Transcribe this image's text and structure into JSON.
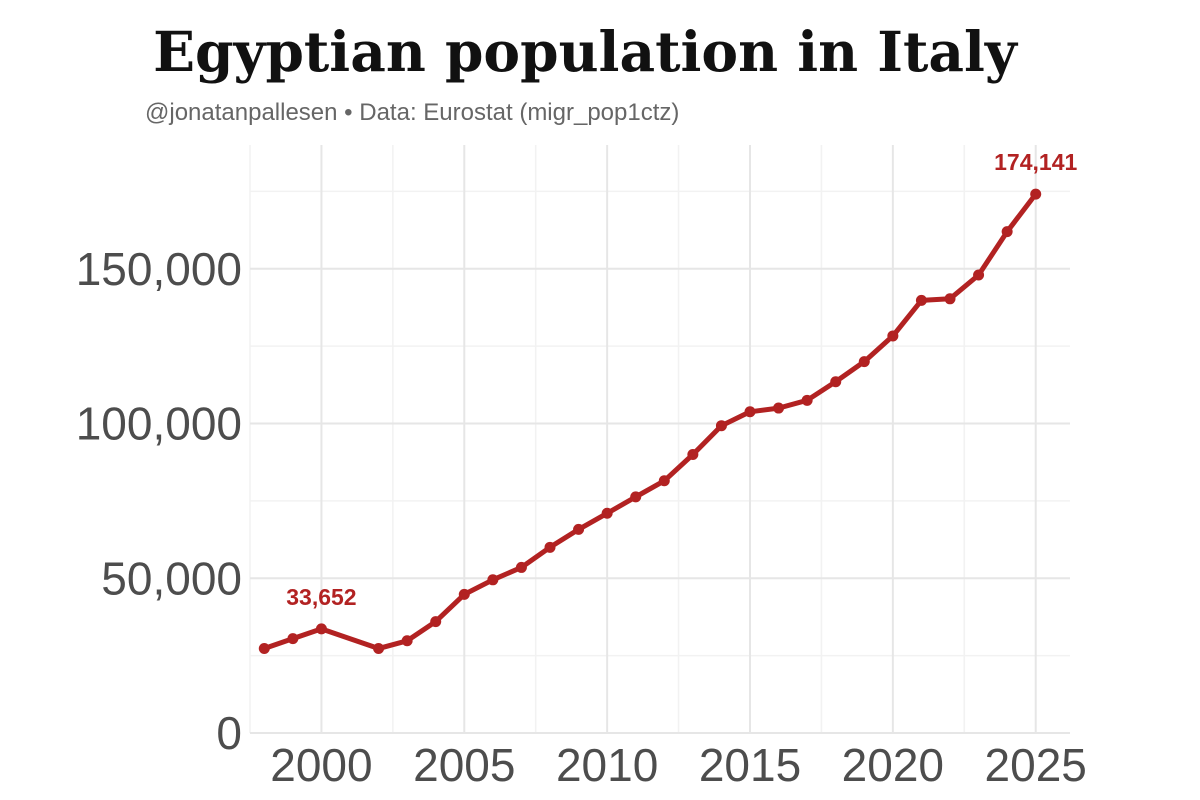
{
  "header": {
    "title": "Egyptian population in Italy",
    "subtitle": "@jonatanpallesen • Data: Eurostat (migr_pop1ctz)"
  },
  "colors": {
    "series": "#b22222",
    "grid_major": "#e6e6e6",
    "grid_minor": "#f2f2f2",
    "tick_text": "#4d4d4d"
  },
  "chart_data": {
    "type": "line",
    "title": "Egyptian population in Italy",
    "subtitle": "@jonatanpallesen • Data: Eurostat (migr_pop1ctz)",
    "xlabel": "",
    "ylabel": "",
    "xlim": [
      1997.5,
      2026.2
    ],
    "ylim": [
      0,
      190000
    ],
    "x_ticks": [
      2000,
      2005,
      2010,
      2015,
      2020,
      2025
    ],
    "x_tick_labels": [
      "2000",
      "2005",
      "2010",
      "2015",
      "2020",
      "2025"
    ],
    "y_ticks": [
      0,
      50000,
      100000,
      150000
    ],
    "y_tick_labels": [
      "0",
      "50,000",
      "100,000",
      "150,000"
    ],
    "grid": true,
    "legend": "none",
    "series": [
      {
        "name": "Egyptian population",
        "x": [
          1998,
          1999,
          2000,
          2002,
          2003,
          2004,
          2005,
          2006,
          2007,
          2008,
          2009,
          2010,
          2011,
          2012,
          2013,
          2014,
          2015,
          2016,
          2017,
          2018,
          2019,
          2020,
          2021,
          2022,
          2023,
          2024,
          2025
        ],
        "values": [
          27300,
          30500,
          33652,
          27300,
          29800,
          36000,
          44800,
          49500,
          53500,
          60000,
          65800,
          71000,
          76300,
          81500,
          90000,
          99300,
          103800,
          105000,
          107500,
          113500,
          120000,
          128300,
          139800,
          140300,
          148000,
          162000,
          174141
        ]
      }
    ],
    "annotations": [
      {
        "x": 2000,
        "y": 33652,
        "text": "33,652"
      },
      {
        "x": 2025,
        "y": 174141,
        "text": "174,141"
      }
    ]
  }
}
